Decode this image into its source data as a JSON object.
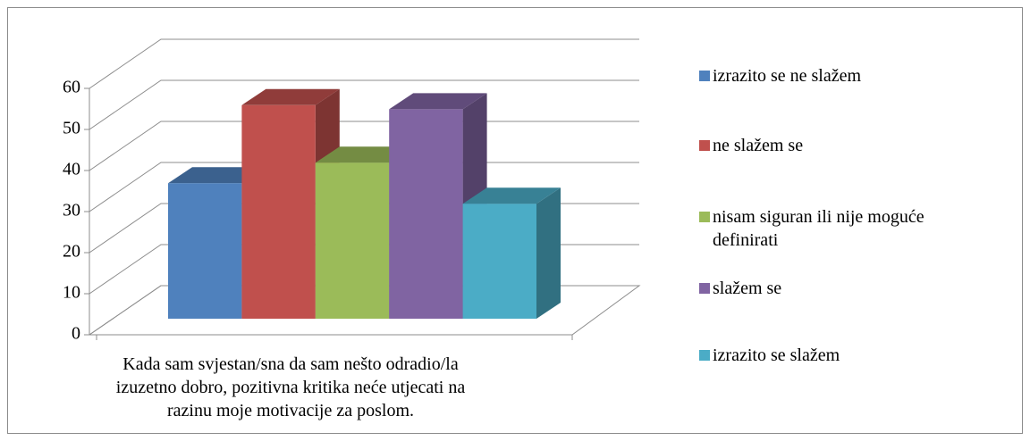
{
  "chart_data": {
    "type": "bar3d",
    "categories": [
      "Kada sam svjestan/sna da sam nešto odradio/la izuzetno dobro, pozitivna kritika neće utjecati na razinu moje motivacije za poslom."
    ],
    "series": [
      {
        "name": "izrazito se ne slažem",
        "color": "#4f81bd",
        "values": [
          33
        ]
      },
      {
        "name": "ne slažem se",
        "color": "#c0504d",
        "values": [
          52
        ]
      },
      {
        "name": "nisam siguran ili nije moguće definirati",
        "color": "#9bbb59",
        "values": [
          38
        ]
      },
      {
        "name": "slažem se",
        "color": "#8064a2",
        "values": [
          51
        ]
      },
      {
        "name": "izrazito se slažem",
        "color": "#4bacc6",
        "values": [
          28
        ]
      }
    ],
    "ylim": [
      0,
      60
    ],
    "yticks": [
      0,
      10,
      20,
      30,
      40,
      50,
      60
    ],
    "grid": true,
    "legend": "right"
  }
}
